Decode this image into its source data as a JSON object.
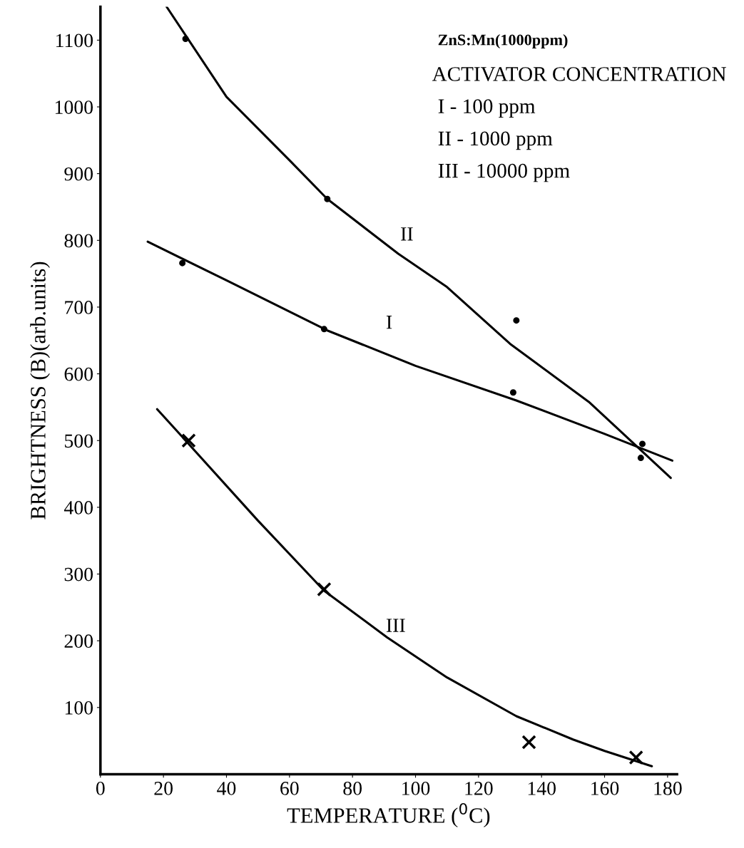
{
  "chart_data": {
    "type": "line",
    "xlabel": "TEMPERATURE ($^{0}$C)",
    "ylabel": "BRIGHTNESS (B)(arb.units)",
    "xlim": [
      0,
      183
    ],
    "ylim": [
      0,
      1150
    ],
    "xticks": [
      0,
      20,
      40,
      60,
      80,
      100,
      120,
      140,
      160,
      180
    ],
    "yticks": [
      100,
      200,
      300,
      400,
      500,
      600,
      700,
      800,
      900,
      1000,
      1100
    ],
    "grid": false,
    "legend": false,
    "series": [
      {
        "color": "#000000",
        "marker": "none",
        "x": [
          21,
          40,
          60,
          72,
          94.5,
          110,
          130,
          155,
          181
        ],
        "values": [
          1150,
          1015,
          920,
          862,
          780,
          730,
          645,
          558,
          444
        ]
      },
      {
        "color": "#000000",
        "marker": "none",
        "x": [
          15,
          40,
          72,
          100,
          132,
          160,
          181.5
        ],
        "values": [
          798,
          740,
          665,
          612,
          560,
          510,
          470
        ]
      },
      {
        "color": "#000000",
        "marker": "none",
        "x": [
          18,
          28,
          50,
          71,
          91,
          110,
          132,
          150,
          160,
          175
        ],
        "values": [
          547,
          495,
          380,
          275,
          205,
          145,
          87,
          52,
          35,
          12
        ]
      },
      {
        "type": "scatter",
        "color": "#000000",
        "marker": "circle",
        "x": [
          27,
          72,
          132,
          171.5
        ],
        "values": [
          1102,
          862,
          680,
          474
        ]
      },
      {
        "type": "scatter",
        "color": "#000000",
        "marker": "circle",
        "x": [
          26,
          71,
          131,
          172
        ],
        "values": [
          766,
          667,
          572,
          495
        ]
      },
      {
        "type": "scatter",
        "color": "#000000",
        "marker": "cross",
        "x": [
          28,
          71,
          136,
          170
        ],
        "values": [
          500,
          277,
          48,
          25
        ]
      }
    ],
    "annotations": [
      "II",
      "I",
      "III",
      "ZnS:Mn(1000ppm)",
      "ACTIVATOR CONCENTRATION",
      "I - 100 ppm",
      "II - 1000 ppm",
      "III - 10000 ppm"
    ]
  }
}
